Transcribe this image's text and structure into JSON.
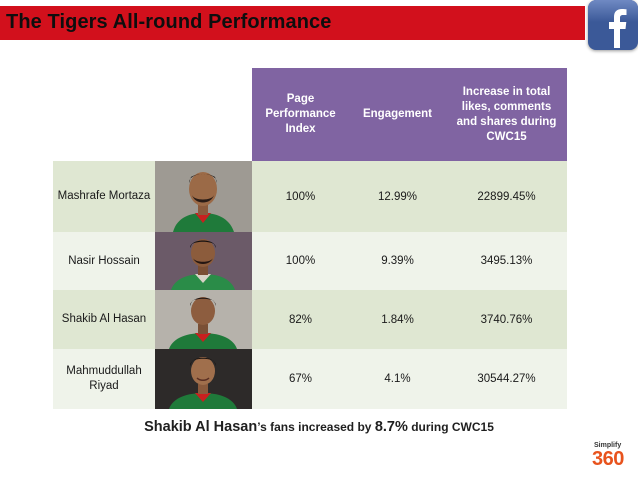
{
  "slide": {
    "title": "The Tigers All-round Performance",
    "accent_color": "#d2101c",
    "header_color": "#8064a2"
  },
  "table": {
    "headers": {
      "page_performance_index": "Page Performance Index",
      "engagement": "Engagement",
      "increase": "Increase in total likes, comments and shares during CWC15"
    },
    "rows": [
      {
        "name": "Mashrafe Mortaza",
        "ppi": "100%",
        "engagement": "12.99%",
        "increase": "22899.45%"
      },
      {
        "name": "Nasir Hossain",
        "ppi": "100%",
        "engagement": "9.39%",
        "increase": "3495.13%"
      },
      {
        "name": "Shakib Al Hasan",
        "ppi": "82%",
        "engagement": "1.84%",
        "increase": "3740.76%"
      },
      {
        "name": "Mahmuddullah Riyad",
        "ppi": "67%",
        "engagement": "4.1%",
        "increase": "30544.27%"
      }
    ]
  },
  "caption": {
    "player": "Shakib Al Hasan",
    "text1": "’s fans increased by ",
    "value": "8.7%",
    "text2": " during CWC15"
  },
  "logo": {
    "top": "Simplify",
    "main": "360",
    "icon": "simplify360-logo"
  },
  "icons": {
    "facebook": "facebook-icon"
  }
}
